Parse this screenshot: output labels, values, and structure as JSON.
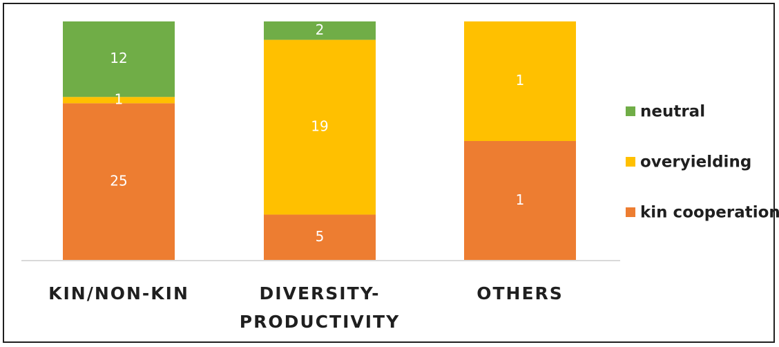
{
  "chart_data": {
    "type": "bar",
    "stacked": true,
    "normalized": true,
    "categories": [
      [
        "KIN/NON-KIN"
      ],
      [
        "DIVERSITY-",
        "PRODUCTIVITY"
      ],
      [
        "OTHERS"
      ]
    ],
    "series": [
      {
        "name": "kin cooperation",
        "values": [
          25,
          5,
          1
        ],
        "labels": [
          "25",
          "5",
          "1"
        ],
        "color": "#ED7D31"
      },
      {
        "name": "overyielding",
        "values": [
          1,
          19,
          1
        ],
        "labels": [
          "1",
          "19",
          "1"
        ],
        "color": "#FFC000"
      },
      {
        "name": "neutral",
        "values": [
          12,
          2,
          0
        ],
        "labels": [
          "12",
          "2",
          ""
        ],
        "color": "#70AD47"
      }
    ],
    "legend_order": [
      "neutral",
      "overyielding",
      "kin cooperation"
    ],
    "legend": "right",
    "grid": false,
    "axis_color": "#d9d9d9"
  }
}
